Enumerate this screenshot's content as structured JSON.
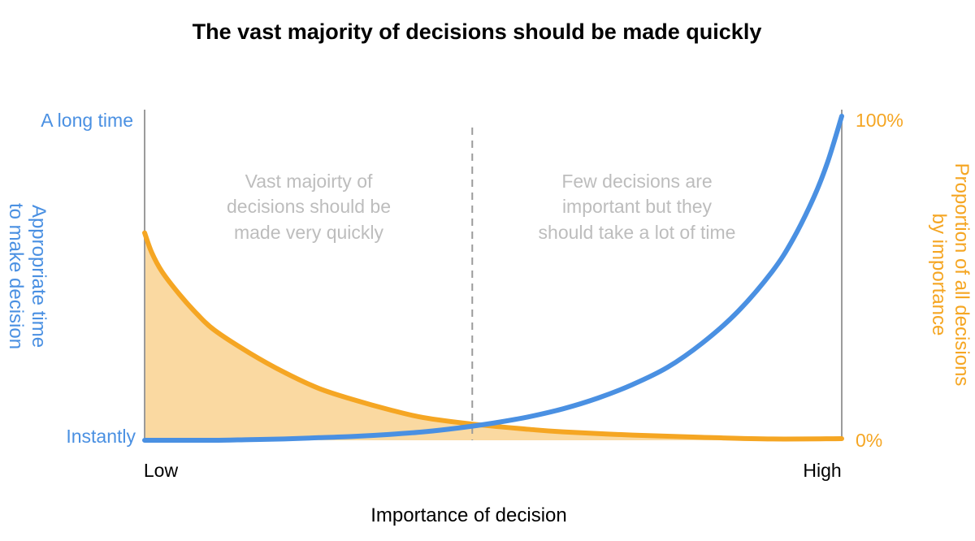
{
  "chart_data": {
    "type": "area",
    "title": "The vast majority of decisions should be made quickly",
    "xlabel": "Importance of decision",
    "x_ticks": [
      "Low",
      "High"
    ],
    "ylabel_left": [
      "Appropriate time",
      "to make decision"
    ],
    "ylabel_right": [
      "Proportion of all decisions",
      "by importance"
    ],
    "y_ticks_left": [
      "Instantly",
      "A long time"
    ],
    "y_ticks_right": [
      "0%",
      "100%"
    ],
    "xlim": [
      0,
      1
    ],
    "ylim": [
      0,
      1
    ],
    "annotations": [
      {
        "region": "left",
        "lines": [
          "Vast majoirty of",
          "decisions should be",
          "made very quickly"
        ]
      },
      {
        "region": "right",
        "lines": [
          "Few decisions are",
          "important but they",
          "should take a lot of time"
        ]
      }
    ],
    "divider_x": 0.47,
    "grid": false,
    "series": [
      {
        "axis": "left",
        "color": "#4a90e2",
        "filled": false,
        "x": [
          0,
          0.05,
          0.1,
          0.15,
          0.2,
          0.25,
          0.3,
          0.35,
          0.4,
          0.45,
          0.5,
          0.55,
          0.6,
          0.65,
          0.7,
          0.75,
          0.8,
          0.85,
          0.9,
          0.93,
          0.96,
          0.98,
          1.0
        ],
        "values": [
          0.0,
          0.0,
          0.0,
          0.002,
          0.004,
          0.008,
          0.012,
          0.018,
          0.026,
          0.038,
          0.053,
          0.072,
          0.097,
          0.13,
          0.172,
          0.225,
          0.3,
          0.395,
          0.52,
          0.62,
          0.75,
          0.86,
          1.0
        ]
      },
      {
        "axis": "right",
        "color": "#f5a623",
        "fill_color": "#fad9a1",
        "filled": true,
        "x": [
          0,
          0.01,
          0.025,
          0.05,
          0.075,
          0.1,
          0.15,
          0.2,
          0.25,
          0.3,
          0.35,
          0.4,
          0.47,
          0.55,
          0.6,
          0.7,
          0.8,
          0.9,
          1.0
        ],
        "values": [
          0.64,
          0.58,
          0.52,
          0.45,
          0.39,
          0.34,
          0.27,
          0.21,
          0.16,
          0.125,
          0.095,
          0.07,
          0.05,
          0.034,
          0.026,
          0.016,
          0.009,
          0.004,
          0.005
        ]
      }
    ]
  },
  "colors": {
    "left_axis": "#4a90e2",
    "right_axis": "#f5a623",
    "axis_line": "#9b9b9b",
    "annotation_text": "#bdbdbd"
  }
}
